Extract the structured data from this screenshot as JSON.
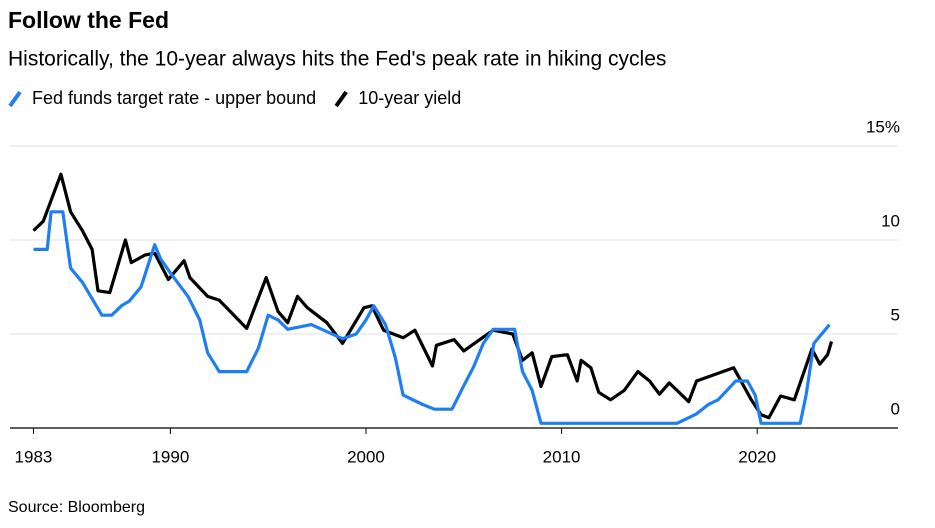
{
  "chart_data": {
    "type": "line",
    "title": "Follow the Fed",
    "subtitle": "Historically, the 10-year always hits the Fed's peak rate in hiking cycles",
    "source": "Source: Bloomberg",
    "xlim": [
      1981.8,
      2027.2
    ],
    "xticks": [
      1983,
      1990,
      2000,
      2010,
      2020
    ],
    "ylim": [
      0,
      15
    ],
    "yticks": [
      0,
      5,
      10,
      {
        "value": 15,
        "label": "15%"
      }
    ],
    "grid": true,
    "series": [
      {
        "name": "Fed funds target rate - upper bound",
        "color": "#1f7ff2",
        "x": [
          1983.0,
          1983.7,
          1983.9,
          1984.5,
          1984.9,
          1985.5,
          1986.5,
          1987.0,
          1987.5,
          1987.9,
          1988.5,
          1989.2,
          1989.5,
          1990.0,
          1990.9,
          1991.5,
          1991.9,
          1992.5,
          1993.9,
          1994.5,
          1995.0,
          1995.5,
          1996.0,
          1997.2,
          1998.8,
          1999.5,
          2000.0,
          2000.4,
          2001.0,
          2001.5,
          2001.9,
          2002.9,
          2003.5,
          2004.4,
          2005.0,
          2005.5,
          2006.0,
          2006.5,
          2007.6,
          2008.0,
          2008.5,
          2008.95,
          2015.9,
          2016.9,
          2017.5,
          2018.0,
          2018.9,
          2019.5,
          2019.9,
          2020.2,
          2022.2,
          2022.5,
          2022.9,
          2023.5,
          2023.7
        ],
        "values": [
          9.5,
          9.5,
          11.5,
          11.5,
          8.5,
          7.75,
          6,
          6,
          6.5,
          6.75,
          7.5,
          9.75,
          9,
          8.25,
          7,
          5.75,
          4,
          3,
          3,
          4.25,
          6,
          5.75,
          5.25,
          5.5,
          4.75,
          5,
          5.75,
          6.5,
          5.5,
          3.75,
          1.75,
          1.25,
          1,
          1,
          2.25,
          3.25,
          4.5,
          5.25,
          5.25,
          3,
          2,
          0.25,
          0.25,
          0.75,
          1.25,
          1.5,
          2.5,
          2.5,
          1.75,
          0.25,
          0.25,
          1.75,
          4.5,
          5.25,
          5.5
        ]
      },
      {
        "name": "10-year yield",
        "color": "#000000",
        "x": [
          1983.0,
          1983.5,
          1984.4,
          1984.9,
          1985.5,
          1986.0,
          1986.3,
          1986.9,
          1987.7,
          1988.0,
          1988.7,
          1989.2,
          1989.9,
          1990.7,
          1991.0,
          1991.9,
          1992.5,
          1993.9,
          1994.9,
          1995.5,
          1996.0,
          1996.5,
          1997.0,
          1998.0,
          1998.8,
          1999.9,
          2000.3,
          2000.9,
          2001.9,
          2002.5,
          2003.4,
          2003.6,
          2004.5,
          2005.0,
          2006.5,
          2007.5,
          2008.0,
          2008.5,
          2008.95,
          2009.5,
          2010.3,
          2010.8,
          2011.0,
          2011.5,
          2011.9,
          2012.5,
          2013.2,
          2013.9,
          2014.5,
          2015.0,
          2015.5,
          2016.5,
          2016.9,
          2018.8,
          2019.7,
          2020.2,
          2020.6,
          2021.2,
          2021.9,
          2022.4,
          2022.8,
          2023.2,
          2023.6,
          2023.8
        ],
        "values": [
          10.5,
          11,
          13.5,
          11.5,
          10.5,
          9.5,
          7.3,
          7.2,
          10,
          8.8,
          9.2,
          9.3,
          7.9,
          8.9,
          8,
          7,
          6.8,
          5.3,
          8,
          6.2,
          5.6,
          7,
          6.4,
          5.6,
          4.5,
          6.4,
          6.5,
          5.2,
          4.8,
          5.2,
          3.3,
          4.4,
          4.7,
          4.1,
          5.2,
          5,
          3.6,
          4,
          2.2,
          3.8,
          3.9,
          2.5,
          3.6,
          3.2,
          1.9,
          1.5,
          2,
          3,
          2.5,
          1.8,
          2.4,
          1.4,
          2.5,
          3.2,
          1.5,
          0.7,
          0.55,
          1.7,
          1.5,
          3,
          4.2,
          3.4,
          3.9,
          4.6
        ]
      }
    ]
  }
}
